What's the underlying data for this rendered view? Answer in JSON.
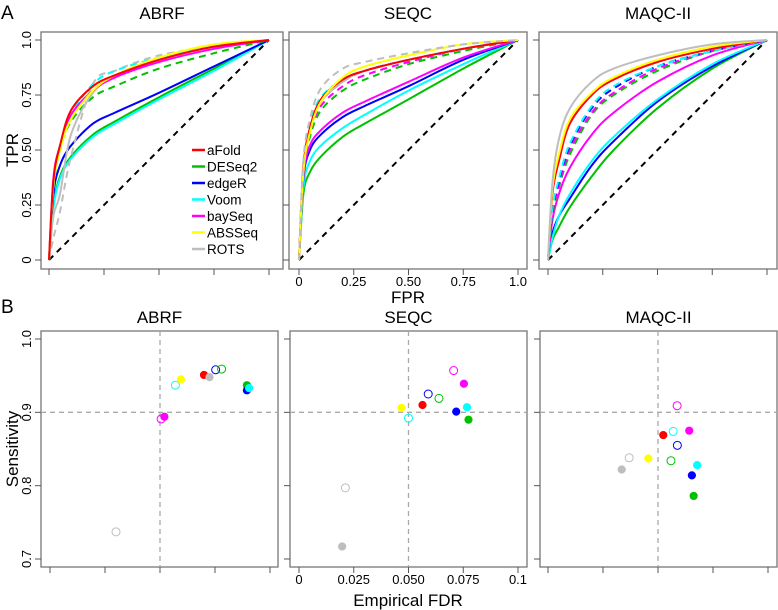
{
  "figure": {
    "panel_a_label": "A",
    "panel_b_label": "B",
    "roc_xlabel": "FPR",
    "roc_ylabel": "TPR",
    "scatter_xlabel": "Empirical FDR",
    "scatter_ylabel": "Sensitivity"
  },
  "methods": [
    {
      "name": "aFold",
      "color": "#ff0000"
    },
    {
      "name": "DESeq2",
      "color": "#00c000"
    },
    {
      "name": "edgeR",
      "color": "#0000ff"
    },
    {
      "name": "Voom",
      "color": "#00ffff"
    },
    {
      "name": "baySeq",
      "color": "#ff00ff"
    },
    {
      "name": "ABSSeq",
      "color": "#ffff00"
    },
    {
      "name": "ROTS",
      "color": "#bebebe"
    }
  ],
  "chart_data": [
    {
      "type": "line",
      "title": "ABRF",
      "xlabel": "FPR",
      "ylabel": "TPR",
      "xlim": [
        0,
        1
      ],
      "ylim": [
        0,
        1
      ],
      "yticks": [
        "0",
        "0.25",
        "0.50",
        "0.75",
        "1.0"
      ],
      "xticks": [],
      "fpr": [
        0,
        0.02,
        0.05,
        0.1,
        0.2,
        0.3,
        0.5,
        0.75,
        1
      ],
      "series": [
        {
          "method": "DESeq2",
          "dash": false,
          "tpr": [
            0,
            0.25,
            0.38,
            0.47,
            0.57,
            0.63,
            0.74,
            0.87,
            1
          ]
        },
        {
          "method": "Voom",
          "dash": false,
          "tpr": [
            0,
            0.24,
            0.37,
            0.46,
            0.56,
            0.62,
            0.73,
            0.86,
            1
          ]
        },
        {
          "method": "edgeR",
          "dash": false,
          "tpr": [
            0,
            0.3,
            0.43,
            0.52,
            0.62,
            0.67,
            0.76,
            0.88,
            1
          ]
        },
        {
          "method": "DESeq2",
          "dash": true,
          "tpr": [
            0,
            0.33,
            0.5,
            0.63,
            0.74,
            0.79,
            0.87,
            0.94,
            1
          ]
        },
        {
          "method": "ROTS",
          "dash": true,
          "tpr": [
            0,
            0.1,
            0.22,
            0.47,
            0.8,
            0.86,
            0.93,
            0.97,
            1
          ]
        },
        {
          "method": "ROTS",
          "dash": false,
          "tpr": [
            0,
            0.2,
            0.3,
            0.57,
            0.76,
            0.83,
            0.91,
            0.97,
            1
          ]
        },
        {
          "method": "Voom",
          "dash": true,
          "tpr": [
            0,
            0.33,
            0.52,
            0.66,
            0.8,
            0.86,
            0.92,
            0.97,
            1
          ]
        },
        {
          "method": "baySeq",
          "dash": false,
          "tpr": [
            0,
            0.37,
            0.52,
            0.66,
            0.77,
            0.83,
            0.9,
            0.96,
            1
          ]
        },
        {
          "method": "ABSSeq",
          "dash": false,
          "tpr": [
            0,
            0.34,
            0.5,
            0.64,
            0.77,
            0.84,
            0.92,
            0.98,
            1
          ]
        },
        {
          "method": "aFold",
          "dash": false,
          "tpr": [
            0,
            0.36,
            0.52,
            0.68,
            0.79,
            0.84,
            0.91,
            0.97,
            1
          ]
        }
      ],
      "legend": "bottom-right"
    },
    {
      "type": "line",
      "title": "SEQC",
      "xlabel": "FPR",
      "ylabel": "TPR",
      "xlim": [
        0,
        1
      ],
      "ylim": [
        0,
        1
      ],
      "yticks": [],
      "xticks": [
        "0",
        "0.25",
        "0.50",
        "0.75",
        "1.0"
      ],
      "fpr": [
        0,
        0.02,
        0.05,
        0.1,
        0.2,
        0.3,
        0.5,
        0.75,
        1
      ],
      "series": [
        {
          "method": "DESeq2",
          "dash": false,
          "tpr": [
            0,
            0.3,
            0.4,
            0.47,
            0.56,
            0.62,
            0.73,
            0.87,
            1
          ]
        },
        {
          "method": "Voom",
          "dash": false,
          "tpr": [
            0,
            0.33,
            0.45,
            0.52,
            0.6,
            0.66,
            0.77,
            0.89,
            1
          ]
        },
        {
          "method": "edgeR",
          "dash": false,
          "tpr": [
            0,
            0.37,
            0.5,
            0.57,
            0.65,
            0.7,
            0.79,
            0.91,
            1
          ]
        },
        {
          "method": "baySeq",
          "dash": false,
          "tpr": [
            0,
            0.38,
            0.52,
            0.59,
            0.67,
            0.72,
            0.81,
            0.92,
            1
          ]
        },
        {
          "method": "DESeq2",
          "dash": true,
          "tpr": [
            0,
            0.4,
            0.56,
            0.68,
            0.77,
            0.82,
            0.89,
            0.95,
            1
          ]
        },
        {
          "method": "baySeq",
          "dash": true,
          "tpr": [
            0,
            0.42,
            0.58,
            0.7,
            0.79,
            0.84,
            0.9,
            0.96,
            1
          ]
        },
        {
          "method": "edgeR",
          "dash": true,
          "tpr": [
            0,
            0.43,
            0.6,
            0.72,
            0.81,
            0.86,
            0.91,
            0.96,
            1
          ]
        },
        {
          "method": "Voom",
          "dash": true,
          "tpr": [
            0,
            0.44,
            0.62,
            0.74,
            0.82,
            0.86,
            0.91,
            0.96,
            1
          ]
        },
        {
          "method": "ROTS",
          "dash": false,
          "tpr": [
            0,
            0.42,
            0.6,
            0.72,
            0.81,
            0.86,
            0.91,
            0.96,
            1
          ]
        },
        {
          "method": "aFold",
          "dash": false,
          "tpr": [
            0,
            0.42,
            0.6,
            0.73,
            0.82,
            0.86,
            0.91,
            0.96,
            1
          ]
        },
        {
          "method": "ABSSeq",
          "dash": false,
          "tpr": [
            0,
            0.4,
            0.58,
            0.72,
            0.83,
            0.88,
            0.93,
            0.98,
            1
          ]
        },
        {
          "method": "ROTS",
          "dash": true,
          "tpr": [
            0,
            0.45,
            0.64,
            0.78,
            0.87,
            0.9,
            0.94,
            0.98,
            1
          ]
        }
      ]
    },
    {
      "type": "line",
      "title": "MAQC-II",
      "xlabel": "FPR",
      "ylabel": "TPR",
      "xlim": [
        0,
        1
      ],
      "ylim": [
        0,
        1
      ],
      "yticks": [],
      "xticks": [],
      "fpr": [
        0,
        0.02,
        0.05,
        0.1,
        0.2,
        0.3,
        0.5,
        0.75,
        1
      ],
      "series": [
        {
          "method": "DESeq2",
          "dash": false,
          "tpr": [
            0,
            0.09,
            0.15,
            0.24,
            0.38,
            0.5,
            0.69,
            0.87,
            1
          ]
        },
        {
          "method": "edgeR",
          "dash": false,
          "tpr": [
            0,
            0.12,
            0.2,
            0.28,
            0.43,
            0.54,
            0.72,
            0.88,
            1
          ]
        },
        {
          "method": "Voom",
          "dash": false,
          "tpr": [
            0,
            0.1,
            0.2,
            0.3,
            0.45,
            0.56,
            0.73,
            0.89,
            1
          ]
        },
        {
          "method": "baySeq",
          "dash": false,
          "tpr": [
            0,
            0.18,
            0.3,
            0.42,
            0.57,
            0.67,
            0.81,
            0.93,
            1
          ]
        },
        {
          "method": "DESeq2",
          "dash": true,
          "tpr": [
            0,
            0.2,
            0.33,
            0.48,
            0.66,
            0.75,
            0.86,
            0.95,
            1
          ]
        },
        {
          "method": "baySeq",
          "dash": true,
          "tpr": [
            0,
            0.21,
            0.34,
            0.5,
            0.67,
            0.76,
            0.87,
            0.95,
            1
          ]
        },
        {
          "method": "edgeR",
          "dash": true,
          "tpr": [
            0,
            0.22,
            0.36,
            0.52,
            0.69,
            0.78,
            0.88,
            0.95,
            1
          ]
        },
        {
          "method": "Voom",
          "dash": true,
          "tpr": [
            0,
            0.23,
            0.37,
            0.53,
            0.7,
            0.79,
            0.88,
            0.95,
            1
          ]
        },
        {
          "method": "aFold",
          "dash": false,
          "tpr": [
            0,
            0.3,
            0.45,
            0.62,
            0.75,
            0.82,
            0.9,
            0.96,
            1
          ]
        },
        {
          "method": "ABSSeq",
          "dash": false,
          "tpr": [
            0,
            0.32,
            0.48,
            0.64,
            0.76,
            0.83,
            0.91,
            0.97,
            1
          ]
        },
        {
          "method": "ROTS",
          "dash": false,
          "tpr": [
            0,
            0.35,
            0.55,
            0.69,
            0.81,
            0.87,
            0.93,
            0.98,
            1
          ]
        }
      ]
    },
    {
      "type": "scatter",
      "title": "ABRF",
      "xlabel": "Empirical FDR",
      "ylabel": "Sensitivity",
      "xlim": [
        0,
        0.1
      ],
      "ylim": [
        0.7,
        1.0
      ],
      "reference_lines": {
        "x": 0.05,
        "y": 0.9
      },
      "yticks": [
        "0.7",
        "0.8",
        "0.9",
        "1.0"
      ],
      "xticks": [],
      "points": [
        {
          "method": "ROTS",
          "filled": false,
          "fdr": 0.03,
          "sens": 0.737
        },
        {
          "method": "baySeq",
          "filled": false,
          "fdr": 0.0505,
          "sens": 0.891
        },
        {
          "method": "baySeq",
          "filled": true,
          "fdr": 0.052,
          "sens": 0.894
        },
        {
          "method": "Voom",
          "filled": false,
          "fdr": 0.057,
          "sens": 0.937
        },
        {
          "method": "ABSSeq",
          "filled": true,
          "fdr": 0.0595,
          "sens": 0.945
        },
        {
          "method": "aFold",
          "filled": true,
          "fdr": 0.07,
          "sens": 0.951
        },
        {
          "method": "ROTS",
          "filled": true,
          "fdr": 0.0725,
          "sens": 0.948
        },
        {
          "method": "edgeR",
          "filled": false,
          "fdr": 0.0753,
          "sens": 0.958
        },
        {
          "method": "DESeq2",
          "filled": false,
          "fdr": 0.078,
          "sens": 0.959
        },
        {
          "method": "DESeq2",
          "filled": true,
          "fdr": 0.0895,
          "sens": 0.937
        },
        {
          "method": "edgeR",
          "filled": true,
          "fdr": 0.0895,
          "sens": 0.93
        },
        {
          "method": "Voom",
          "filled": true,
          "fdr": 0.0905,
          "sens": 0.933
        }
      ]
    },
    {
      "type": "scatter",
      "title": "SEQC",
      "xlabel": "Empirical FDR",
      "ylabel": "Sensitivity",
      "xlim": [
        0,
        0.1
      ],
      "ylim": [
        0.7,
        1.0
      ],
      "reference_lines": {
        "x": 0.05,
        "y": 0.9
      },
      "yticks": [],
      "xticks": [
        "0",
        "0.025",
        "0.050",
        "0.075",
        "0.1"
      ],
      "points": [
        {
          "method": "baySeq",
          "filled": false,
          "fdr": 0.0706,
          "sens": 0.957
        },
        {
          "method": "baySeq",
          "filled": true,
          "fdr": 0.0753,
          "sens": 0.939
        },
        {
          "method": "edgeR",
          "filled": false,
          "fdr": 0.059,
          "sens": 0.925
        },
        {
          "method": "DESeq2",
          "filled": false,
          "fdr": 0.0639,
          "sens": 0.919
        },
        {
          "method": "ABSSeq",
          "filled": true,
          "fdr": 0.0468,
          "sens": 0.906
        },
        {
          "method": "aFold",
          "filled": true,
          "fdr": 0.0564,
          "sens": 0.91
        },
        {
          "method": "edgeR",
          "filled": true,
          "fdr": 0.0718,
          "sens": 0.901
        },
        {
          "method": "Voom",
          "filled": true,
          "fdr": 0.0767,
          "sens": 0.907
        },
        {
          "method": "Voom",
          "filled": false,
          "fdr": 0.05,
          "sens": 0.892
        },
        {
          "method": "DESeq2",
          "filled": true,
          "fdr": 0.0774,
          "sens": 0.89
        },
        {
          "method": "ROTS",
          "filled": false,
          "fdr": 0.0212,
          "sens": 0.797
        },
        {
          "method": "ROTS",
          "filled": true,
          "fdr": 0.0197,
          "sens": 0.717
        }
      ]
    },
    {
      "type": "scatter",
      "title": "MAQC-II",
      "xlabel": "Empirical FDR",
      "ylabel": "Sensitivity",
      "xlim": [
        0,
        0.1
      ],
      "ylim": [
        0.7,
        1.0
      ],
      "reference_lines": {
        "x": 0.05,
        "y": 0.9
      },
      "yticks": [],
      "xticks": [],
      "points": [
        {
          "method": "baySeq",
          "filled": false,
          "fdr": 0.0587,
          "sens": 0.909
        },
        {
          "method": "Voom",
          "filled": false,
          "fdr": 0.0569,
          "sens": 0.874
        },
        {
          "method": "baySeq",
          "filled": true,
          "fdr": 0.0642,
          "sens": 0.875
        },
        {
          "method": "aFold",
          "filled": true,
          "fdr": 0.0524,
          "sens": 0.869
        },
        {
          "method": "edgeR",
          "filled": false,
          "fdr": 0.0588,
          "sens": 0.855
        },
        {
          "method": "ROTS",
          "filled": false,
          "fdr": 0.0369,
          "sens": 0.838
        },
        {
          "method": "ABSSeq",
          "filled": true,
          "fdr": 0.0456,
          "sens": 0.837
        },
        {
          "method": "DESeq2",
          "filled": false,
          "fdr": 0.0559,
          "sens": 0.834
        },
        {
          "method": "Voom",
          "filled": true,
          "fdr": 0.0678,
          "sens": 0.828
        },
        {
          "method": "ROTS",
          "filled": true,
          "fdr": 0.0335,
          "sens": 0.822
        },
        {
          "method": "edgeR",
          "filled": true,
          "fdr": 0.0654,
          "sens": 0.814
        },
        {
          "method": "DESeq2",
          "filled": true,
          "fdr": 0.0662,
          "sens": 0.786
        }
      ]
    }
  ]
}
